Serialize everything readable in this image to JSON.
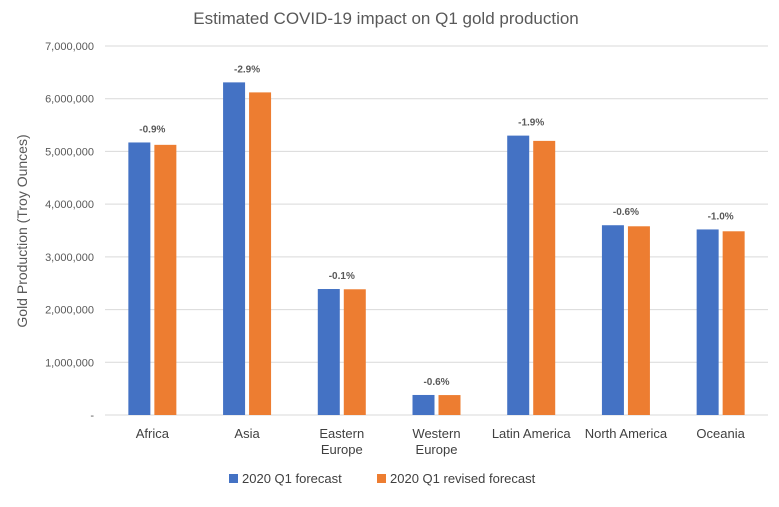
{
  "chart_data": {
    "type": "bar",
    "title": "Estimated COVID-19 impact on Q1 gold production",
    "xlabel": "",
    "ylabel": "Gold Production (Troy Ounces)",
    "ylim": [
      0,
      7000000
    ],
    "yticks": [
      0,
      1000000,
      2000000,
      3000000,
      4000000,
      5000000,
      6000000,
      7000000
    ],
    "ytick_labels": [
      "-",
      "1,000,000",
      "2,000,000",
      "3,000,000",
      "4,000,000",
      "5,000,000",
      "6,000,000",
      "7,000,000"
    ],
    "grid": true,
    "legend_position": "bottom",
    "categories": [
      [
        "Africa"
      ],
      [
        "Asia"
      ],
      [
        "Eastern",
        "Europe"
      ],
      [
        "Western",
        "Europe"
      ],
      [
        "Latin America"
      ],
      [
        "North America"
      ],
      [
        "Oceania"
      ]
    ],
    "series": [
      {
        "name": "2020 Q1 forecast",
        "color": "#4472C4",
        "values": [
          5170000,
          6310000,
          2390000,
          380000,
          5300000,
          3600000,
          3520000
        ]
      },
      {
        "name": "2020 Q1 revised forecast",
        "color": "#ED7D31",
        "values": [
          5125000,
          6120000,
          2385000,
          378000,
          5200000,
          3580000,
          3485000
        ]
      }
    ],
    "annotations": [
      "-0.9%",
      "-2.9%",
      "-0.1%",
      "-0.6%",
      "-1.9%",
      "-0.6%",
      "-1.0%"
    ]
  }
}
